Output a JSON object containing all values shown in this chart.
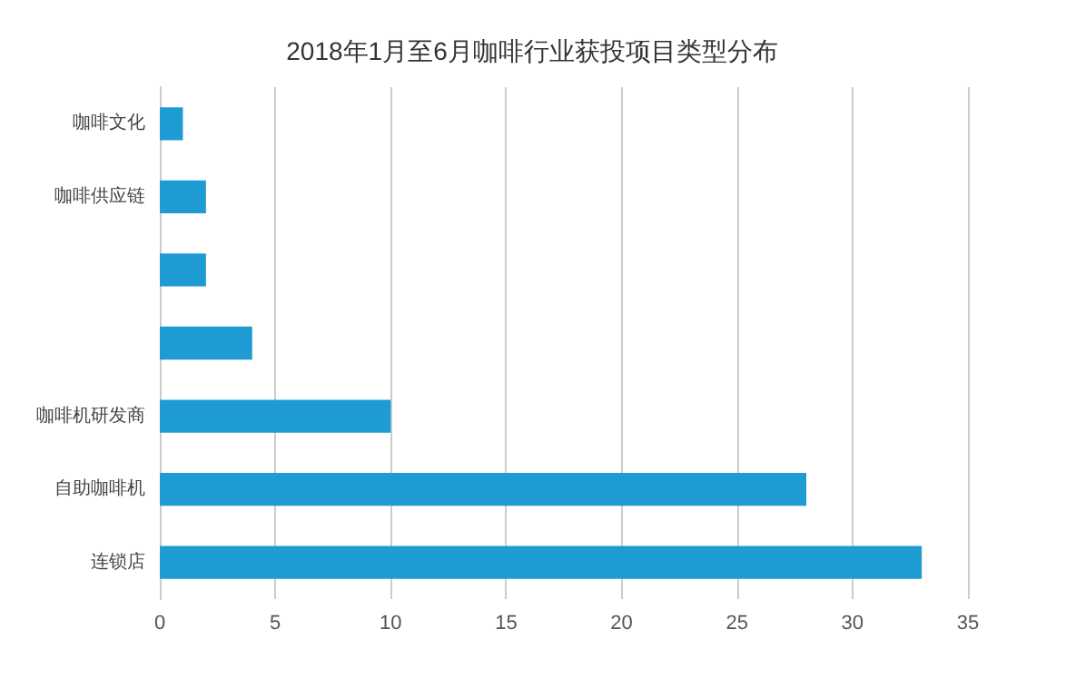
{
  "chart_data": {
    "type": "bar",
    "orientation": "horizontal",
    "title": "2018年1月至6月咖啡行业获投项目类型分布",
    "categories": [
      "咖啡文化",
      "咖啡供应链",
      null,
      null,
      "咖啡机研发商",
      "自助咖啡机",
      "连锁店"
    ],
    "values": [
      1,
      2,
      2,
      4,
      10,
      28,
      33
    ],
    "color": "#1f9bd3",
    "xlim": [
      0,
      35
    ],
    "xticks": [
      0,
      5,
      10,
      15,
      20,
      25,
      30,
      35
    ],
    "grid": "x"
  }
}
